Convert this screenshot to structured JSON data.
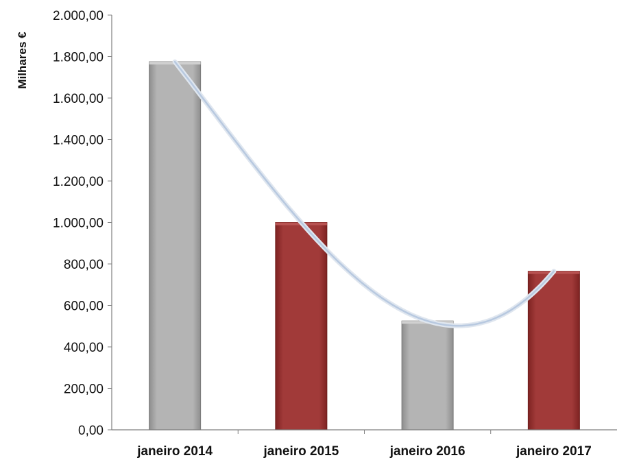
{
  "chart_data": {
    "type": "bar",
    "ylabel": "Milhares €",
    "xlabel": "",
    "title": "",
    "categories": [
      "janeiro  2014",
      "janeiro  2015",
      "janeiro  2016",
      "janeiro  2017"
    ],
    "values": [
      1775,
      1000,
      525,
      765
    ],
    "bar_colors": [
      "#a8a8a8",
      "#9b3433",
      "#a8a8a8",
      "#9b3433"
    ],
    "ylim": [
      0,
      2000
    ],
    "y_ticks": [
      0,
      200,
      400,
      600,
      800,
      1000,
      1200,
      1400,
      1600,
      1800,
      2000
    ],
    "y_tick_labels": [
      "0,00",
      "200,00",
      "400,00",
      "600,00",
      "800,00",
      "1.000,00",
      "1.200,00",
      "1.400,00",
      "1.600,00",
      "1.800,00",
      "2.000,00"
    ],
    "trendline": {
      "type": "polynomial",
      "color": "#b8c9e0"
    },
    "grid": false,
    "legend": "none"
  }
}
